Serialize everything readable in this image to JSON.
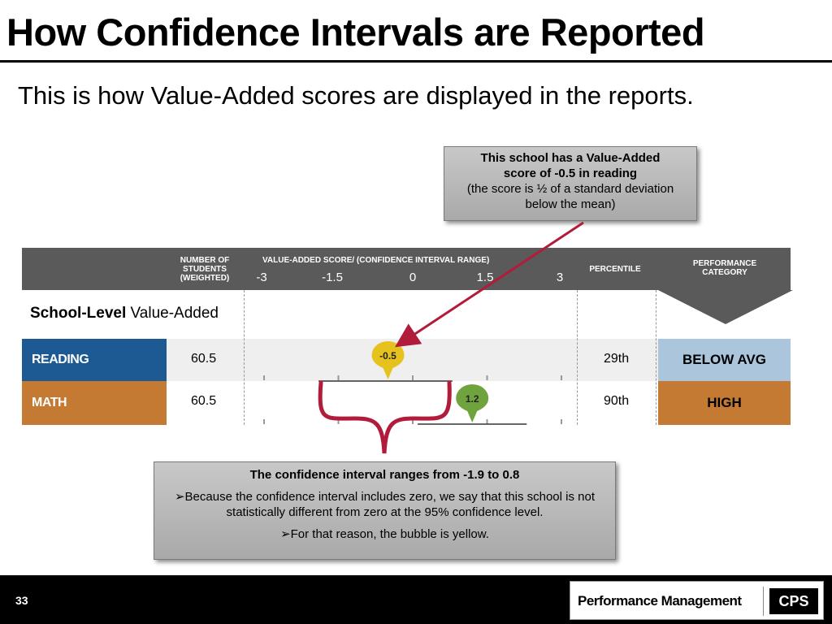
{
  "slide": {
    "title": "How Confidence Intervals are Reported",
    "subtitle": "This is how Value-Added scores are displayed in the reports.",
    "page_number": "33"
  },
  "callout_top": {
    "line1": "This school has a Value-Added",
    "line2": "score of -0.5 in reading",
    "line3": "(the score is ½ of a standard deviation",
    "line4": "below the mean)"
  },
  "callout_bottom": {
    "heading": "The confidence interval ranges from -1.9 to 0.8",
    "point1": "➢Because the confidence interval includes zero, we say that this school is not statistically different from zero at the 95% confidence level.",
    "point2": "➢For that reason, the bubble is yellow."
  },
  "table": {
    "header_students_1": "NUMBER OF",
    "header_students_2": "STUDENTS",
    "header_students_3": "(WEIGHTED)",
    "header_score": "VALUE-ADDED SCORE/ (CONFIDENCE INTERVAL RANGE)",
    "header_percentile": "PERCENTILE",
    "header_performance_1": "PERFORMANCE",
    "header_performance_2": "CATEGORY",
    "scale": [
      "-3",
      "-1.5",
      "0",
      "1.5",
      "3"
    ],
    "section_title_bold": "School-Level",
    "section_title_rest": " Value-Added",
    "rows": [
      {
        "subject": "READING",
        "students": "60.5",
        "score": "-0.5",
        "score_value": -0.5,
        "ci_low": -1.9,
        "ci_high": 0.8,
        "bubble_color": "#e6c21e",
        "percentile": "29th",
        "category": "BELOW AVG"
      },
      {
        "subject": "MATH",
        "students": "60.5",
        "score": "1.2",
        "score_value": 1.2,
        "ci_low": 0.1,
        "ci_high": 2.3,
        "bubble_color": "#6fa33e",
        "percentile": "90th",
        "category": "HIGH"
      }
    ]
  },
  "footer": {
    "logo_text": "Performance Management",
    "logo_box": "CPS"
  },
  "colors": {
    "reading_blue": "#1d5a93",
    "math_orange": "#c47a33",
    "header_gray": "#5a5a5a",
    "arrow_red": "#b01c3a"
  }
}
